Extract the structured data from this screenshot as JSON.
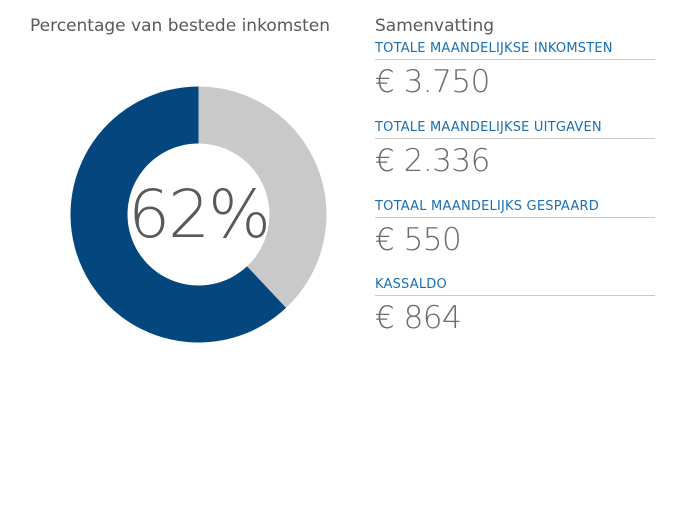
{
  "chart": {
    "title": "Percentage van bestede inkomsten",
    "center_label": "62%"
  },
  "chart_data": {
    "type": "pie",
    "style": "donut",
    "slices": [
      {
        "value": 62,
        "color": "#03477e"
      },
      {
        "value": 38,
        "color": "#c9c9c9"
      }
    ]
  },
  "summary": {
    "title": "Samenvatting",
    "metrics": [
      {
        "label": "TOTALE MAANDELIJKSE INKOMSTEN",
        "value": "€ 3.750"
      },
      {
        "label": "TOTALE MAANDELIJKSE UITGAVEN",
        "value": "€ 2.336"
      },
      {
        "label": "TOTAAL MAANDELIJKS GESPAARD",
        "value": "€ 550"
      },
      {
        "label": "KASSALDO",
        "value": "€ 864"
      }
    ]
  }
}
